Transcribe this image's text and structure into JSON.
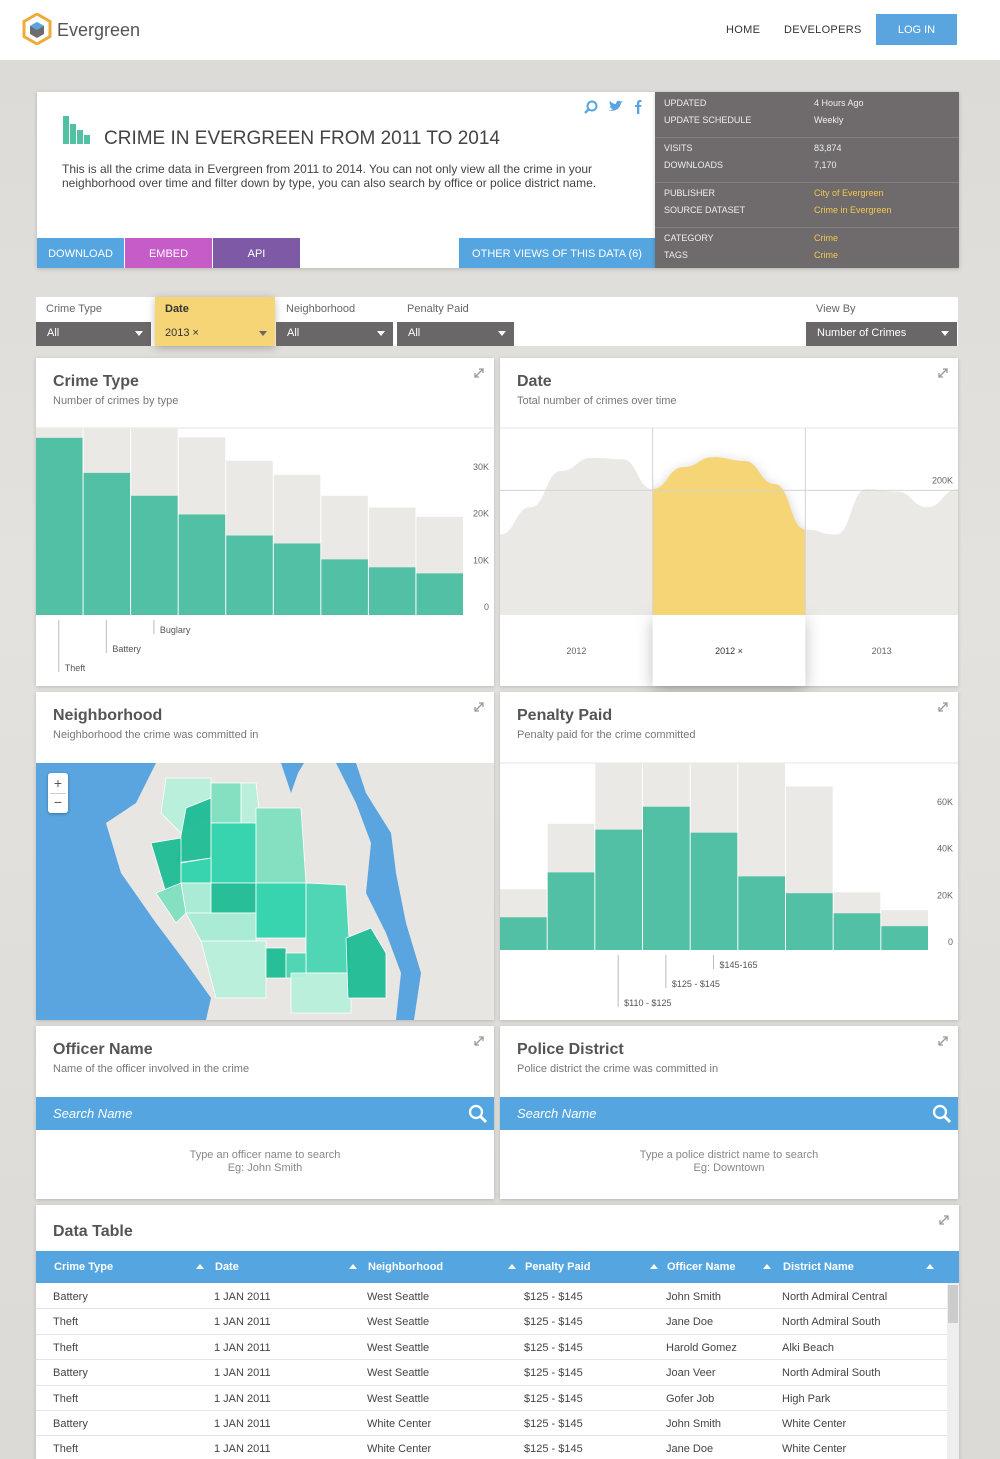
{
  "header": {
    "brand": "Evergreen",
    "nav": [
      "HOME",
      "DEVELOPERS"
    ],
    "login": "LOG IN"
  },
  "dataset": {
    "title": "CRIME IN EVERGREEN FROM 2011 TO 2014",
    "description": "This is all the crime data in Evergreen from 2011 to 2014. You can not only view all the crime in your neighborhood over time and filter down by type, you can also search by office or police district name.",
    "buttons": [
      "DOWNLOAD",
      "EMBED",
      "API"
    ],
    "other_views": "OTHER VIEWS OF THIS DATA (6)"
  },
  "meta": [
    [
      [
        "UPDATED",
        "4 Hours Ago"
      ],
      [
        "UPDATE SCHEDULE",
        "Weekly"
      ]
    ],
    [
      [
        "VISITS",
        "83,874"
      ],
      [
        "DOWNLOADS",
        "7,170"
      ]
    ],
    [
      [
        "PUBLISHER",
        "City of Evergreen"
      ],
      [
        "SOURCE DATASET",
        "Crime in Evergreen"
      ]
    ],
    [
      [
        "CATEGORY",
        "Crime"
      ],
      [
        "TAGS",
        "Crime"
      ]
    ]
  ],
  "filters": [
    [
      "Crime Type",
      "All"
    ],
    [
      "Date",
      "2013 ×"
    ],
    [
      "Neighborhood",
      "All"
    ],
    [
      "Penalty Paid",
      "All"
    ]
  ],
  "view_by": [
    "View By",
    "Number of Crimes"
  ],
  "panels": {
    "crime_type": {
      "title": "Crime Type",
      "subtitle": "Number of crimes by type",
      "chart": {
        "type": "bar",
        "categories": [
          "Theft",
          "Battery",
          "Buglary",
          null,
          null,
          null,
          null,
          null,
          null
        ],
        "series": [
          {
            "color": "#ebe9e6",
            "values": [
              40000,
              40000,
              40000,
              38000,
              33000,
              30000,
              25500,
              23000,
              21000
            ]
          },
          {
            "color": "#52c0a5",
            "values": [
              37900,
              30400,
              25500,
              21500,
              17000,
              15300,
              11900,
              10200,
              8900
            ]
          }
        ],
        "ylim": [
          0,
          40000
        ],
        "yticks": [
          0,
          {
            "value": 10000,
            "label": "10K"
          },
          {
            "value": 20000,
            "label": "20K"
          },
          {
            "value": 30000,
            "label": "30K"
          }
        ],
        "grid": false
      }
    },
    "date": {
      "title": "Date",
      "subtitle": "Total number of crimes over time",
      "chart": {
        "type": "area",
        "categories": [
          "2012",
          "2012 ×",
          "2013"
        ],
        "selected": 1,
        "color": "#ebe9e6",
        "selected_color": "#f5d576",
        "values": [
          129000,
          173000,
          231000,
          252000,
          250000,
          202000,
          237000,
          253000,
          247000,
          210000,
          137000,
          129000,
          202000,
          198000,
          173000,
          202000
        ],
        "ylim": [
          0,
          300000
        ],
        "yticks": [
          {
            "value": 200000,
            "label": "200K"
          }
        ],
        "grid": true
      }
    },
    "neighborhood": {
      "title": "Neighborhood",
      "subtitle": "Neighborhood the crime was committed in",
      "zoom": [
        "+",
        "−"
      ]
    },
    "penalty_paid": {
      "title": "Penalty Paid",
      "subtitle": "Penalty paid for the crime committed",
      "chart": {
        "type": "bar",
        "categories": [
          null,
          null,
          "$110 - $125",
          "$125 - $145",
          "$145-165",
          null,
          null,
          null,
          null
        ],
        "series": [
          {
            "color": "#ebe9e6",
            "values": [
              26000,
              54000,
              80000,
              80000,
              80000,
              80000,
              70000,
              24700,
              17000
            ]
          },
          {
            "color": "#52c0a5",
            "values": [
              14000,
              33200,
              51500,
              61300,
              50200,
              31500,
              24300,
              15700,
              10200
            ]
          }
        ],
        "ylim": [
          0,
          80000
        ],
        "yticks": [
          0,
          {
            "value": 20000,
            "label": "20K"
          },
          {
            "value": 40000,
            "label": "40K"
          },
          {
            "value": 60000,
            "label": "60K"
          }
        ],
        "grid": false
      }
    },
    "officer_name": {
      "title": "Officer Name",
      "subtitle": "Name of the officer involved in the crime",
      "search": "Search Name",
      "hint": [
        "Type an officer name to search",
        "Eg: John Smith"
      ]
    },
    "police_district": {
      "title": "Police District",
      "subtitle": "Police district the crime was committed in",
      "search": "Search Name",
      "hint": [
        "Type a police district name to search",
        "Eg: Downtown"
      ]
    }
  },
  "data_table": {
    "title": "Data Table",
    "columns": [
      "Crime Type",
      "Date",
      "Neighborhood",
      "Penalty Paid",
      "Officer Name",
      "District Name"
    ],
    "rows": [
      [
        "Battery",
        "1 JAN 2011",
        "West Seattle",
        "$125 - $145",
        "John Smith",
        "North Admiral Central"
      ],
      [
        "Theft",
        "1 JAN 2011",
        "West Seattle",
        "$125 - $145",
        "Jane Doe",
        "North Admiral South"
      ],
      [
        "Theft",
        "1 JAN 2011",
        "West Seattle",
        "$125 - $145",
        "Harold Gomez",
        "Alki Beach"
      ],
      [
        "Battery",
        "1 JAN 2011",
        "West Seattle",
        "$125 - $145",
        "Joan Veer",
        "North Admiral South"
      ],
      [
        "Theft",
        "1 JAN 2011",
        "West Seattle",
        "$125 - $145",
        "Gofer Job",
        "High Park"
      ],
      [
        "Battery",
        "1 JAN 2011",
        "White Center",
        "$125 - $145",
        "John Smith",
        "White Center"
      ],
      [
        "Theft",
        "1 JAN 2011",
        "White Center",
        "$125 - $145",
        "Jane Doe",
        "White Center"
      ]
    ]
  }
}
